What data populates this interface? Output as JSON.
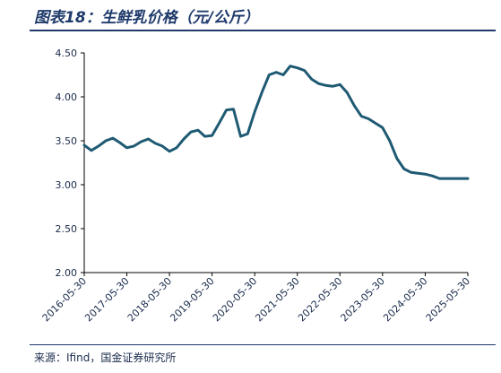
{
  "title": "图表18：生鲜乳价格（元/公斤）",
  "source": "来源：Ifind，国金证券研究所",
  "colors": {
    "line": "#1f5a73",
    "axis": "#000000",
    "rule": "#1f3a6b"
  },
  "chart_data": {
    "type": "line",
    "title": "生鲜乳价格（元/公斤）",
    "xlabel": "",
    "ylabel": "",
    "ylim": [
      2.0,
      4.5
    ],
    "yticks": [
      "2.00",
      "2.50",
      "3.00",
      "3.50",
      "4.00",
      "4.50"
    ],
    "xticks": [
      "2016-05-30",
      "2017-05-30",
      "2018-05-30",
      "2019-05-30",
      "2020-05-30",
      "2021-05-30",
      "2022-05-30",
      "2023-05-30",
      "2024-05-30",
      "2025-05-30"
    ],
    "grid": false,
    "legend": "none",
    "series": [
      {
        "x": [
          "2016-05-30",
          "2016-07-30",
          "2016-09-30",
          "2016-11-30",
          "2017-01-30",
          "2017-03-30",
          "2017-05-30",
          "2017-07-30",
          "2017-09-30",
          "2017-11-30",
          "2018-01-30",
          "2018-03-30",
          "2018-05-30",
          "2018-07-30",
          "2018-09-30",
          "2018-11-30",
          "2019-01-30",
          "2019-03-30",
          "2019-05-30",
          "2019-07-30",
          "2019-09-30",
          "2019-11-30",
          "2020-01-30",
          "2020-03-30",
          "2020-05-30",
          "2020-07-30",
          "2020-09-30",
          "2020-11-30",
          "2021-01-30",
          "2021-03-30",
          "2021-05-30",
          "2021-07-30",
          "2021-09-30",
          "2021-11-30",
          "2022-01-30",
          "2022-03-30",
          "2022-05-30",
          "2022-07-30",
          "2022-09-30",
          "2022-11-30",
          "2023-01-30",
          "2023-03-30",
          "2023-05-30",
          "2023-07-30",
          "2023-09-30",
          "2023-11-30",
          "2024-01-30",
          "2024-03-30",
          "2024-05-30",
          "2024-07-30",
          "2024-09-30",
          "2024-11-30",
          "2025-01-30",
          "2025-03-30",
          "2025-05-30"
        ],
        "y": [
          3.45,
          3.39,
          3.44,
          3.5,
          3.53,
          3.48,
          3.42,
          3.44,
          3.49,
          3.52,
          3.47,
          3.44,
          3.38,
          3.42,
          3.52,
          3.6,
          3.62,
          3.55,
          3.56,
          3.7,
          3.85,
          3.86,
          3.55,
          3.58,
          3.83,
          4.05,
          4.25,
          4.28,
          4.25,
          4.35,
          4.33,
          4.3,
          4.2,
          4.15,
          4.13,
          4.12,
          4.14,
          4.05,
          3.9,
          3.78,
          3.75,
          3.7,
          3.65,
          3.5,
          3.3,
          3.18,
          3.14,
          3.13,
          3.12,
          3.1,
          3.07,
          3.07,
          3.07,
          3.07,
          3.07
        ]
      }
    ]
  }
}
